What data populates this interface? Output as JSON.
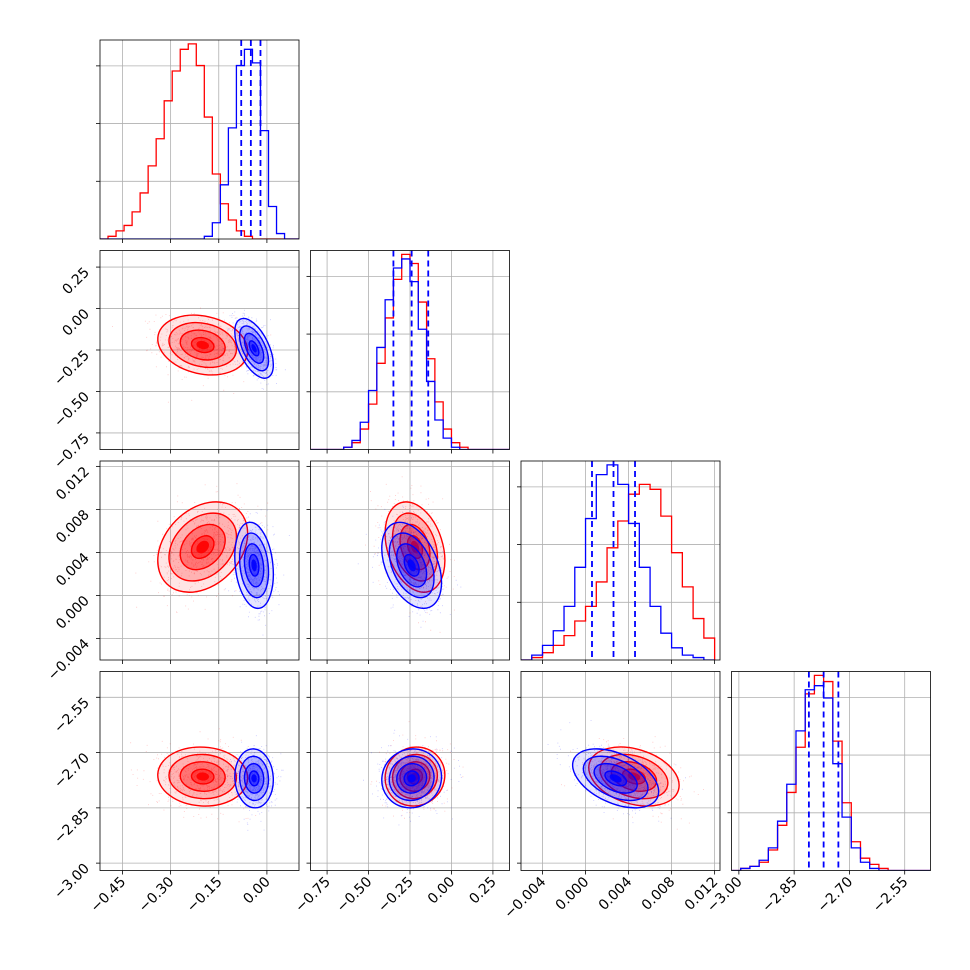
{
  "chart_data": {
    "type": "corner",
    "grid": true,
    "parameters": [
      {
        "range": [
          -0.52,
          0.1
        ],
        "ticks": [
          -0.45,
          -0.3,
          -0.15,
          0.0
        ],
        "tick_labels": [
          "−0.45",
          "−0.30",
          "−0.15",
          "0.00"
        ]
      },
      {
        "range": [
          -0.85,
          0.35
        ],
        "ticks": [
          -0.75,
          -0.5,
          -0.25,
          0.0,
          0.25
        ],
        "tick_labels": [
          "−0.75",
          "−0.50",
          "−0.25",
          "0.00",
          "0.25"
        ]
      },
      {
        "range": [
          -0.006,
          0.0125
        ],
        "ticks": [
          -0.004,
          0.0,
          0.004,
          0.008,
          0.012
        ],
        "tick_labels": [
          "−0.004",
          "0.000",
          "0.004",
          "0.008",
          "0.012"
        ]
      },
      {
        "range": [
          -3.02,
          -2.48
        ],
        "ticks": [
          -3.0,
          -2.85,
          -2.7,
          -2.55
        ],
        "tick_labels": [
          "−3.00",
          "−2.85",
          "−2.70",
          "−2.55"
        ]
      }
    ],
    "series": [
      {
        "color": "#ff0000",
        "hist_edges": [
          [
            -0.52,
            -0.495,
            -0.47,
            -0.445,
            -0.42,
            -0.395,
            -0.37,
            -0.345,
            -0.32,
            -0.295,
            -0.27,
            -0.245,
            -0.22,
            -0.195,
            -0.17,
            -0.145,
            -0.12,
            -0.095,
            -0.07,
            -0.045,
            -0.02,
            0.005,
            0.03,
            0.055,
            0.08,
            0.1
          ],
          [
            -0.85,
            -0.8,
            -0.75,
            -0.7,
            -0.65,
            -0.6,
            -0.55,
            -0.5,
            -0.45,
            -0.4,
            -0.35,
            -0.3,
            -0.25,
            -0.2,
            -0.15,
            -0.1,
            -0.05,
            0.0,
            0.05,
            0.1,
            0.15,
            0.2,
            0.25,
            0.3,
            0.35
          ],
          [
            -0.006,
            -0.005,
            -0.004,
            -0.003,
            -0.002,
            -0.001,
            0.0,
            0.001,
            0.002,
            0.003,
            0.004,
            0.005,
            0.006,
            0.007,
            0.008,
            0.009,
            0.01,
            0.011,
            0.012
          ],
          [
            -3.02,
            -2.995,
            -2.97,
            -2.945,
            -2.92,
            -2.895,
            -2.87,
            -2.845,
            -2.82,
            -2.795,
            -2.77,
            -2.745,
            -2.72,
            -2.695,
            -2.67,
            -2.645,
            -2.62,
            -2.595,
            -2.57,
            -2.545,
            -2.52,
            -2.48
          ]
        ],
        "hist_counts": [
          [
            0,
            1,
            3,
            5,
            10,
            17,
            27,
            37,
            51,
            62,
            70,
            72,
            64,
            45,
            24,
            13,
            7,
            3,
            1,
            0,
            0,
            0,
            0,
            0,
            0
          ],
          [
            0,
            0,
            0,
            0,
            1,
            3,
            9,
            20,
            38,
            58,
            75,
            86,
            82,
            65,
            40,
            21,
            9,
            3,
            1,
            0,
            0,
            0,
            0,
            0
          ],
          [
            0,
            1,
            3,
            6,
            10,
            16,
            22,
            32,
            46,
            57,
            68,
            72,
            70,
            59,
            44,
            30,
            17,
            9
          ],
          [
            0,
            1,
            2,
            4,
            10,
            22,
            38,
            60,
            86,
            95,
            92,
            63,
            33,
            14,
            6,
            3,
            1,
            0,
            0,
            0,
            0
          ]
        ],
        "means": [
          -0.2,
          -0.22,
          0.0045,
          -2.765
        ],
        "stds": [
          0.07,
          0.09,
          0.0021,
          0.04
        ],
        "correlations": {
          "0-1": -0.2,
          "0-2": 0.3,
          "0-3": -0.05,
          "1-2": -0.3,
          "1-3": 0.05,
          "2-3": -0.3
        }
      },
      {
        "color": "#0000ff",
        "hist_edges": [
          [
            -0.52,
            -0.495,
            -0.47,
            -0.445,
            -0.42,
            -0.395,
            -0.37,
            -0.345,
            -0.32,
            -0.295,
            -0.27,
            -0.245,
            -0.22,
            -0.195,
            -0.17,
            -0.145,
            -0.12,
            -0.095,
            -0.07,
            -0.045,
            -0.02,
            0.005,
            0.03,
            0.055,
            0.08,
            0.1
          ],
          [
            -0.85,
            -0.8,
            -0.75,
            -0.7,
            -0.65,
            -0.6,
            -0.55,
            -0.5,
            -0.45,
            -0.4,
            -0.35,
            -0.3,
            -0.25,
            -0.2,
            -0.15,
            -0.1,
            -0.05,
            0.0,
            0.05,
            0.1,
            0.15,
            0.2,
            0.25,
            0.3,
            0.35
          ],
          [
            -0.006,
            -0.005,
            -0.004,
            -0.003,
            -0.002,
            -0.001,
            0.0,
            0.001,
            0.002,
            0.003,
            0.004,
            0.005,
            0.006,
            0.007,
            0.008,
            0.009,
            0.01,
            0.011,
            0.012
          ],
          [
            -3.02,
            -2.995,
            -2.97,
            -2.945,
            -2.92,
            -2.895,
            -2.87,
            -2.845,
            -2.82,
            -2.795,
            -2.77,
            -2.745,
            -2.72,
            -2.695,
            -2.67,
            -2.645,
            -2.62,
            -2.595,
            -2.57,
            -2.545,
            -2.52,
            -2.48
          ]
        ],
        "hist_counts": [
          [
            0,
            0,
            0,
            0,
            0,
            0,
            0,
            0,
            0,
            0,
            0,
            0,
            0,
            1,
            6,
            20,
            41,
            64,
            70,
            65,
            40,
            12,
            2,
            0,
            0
          ],
          [
            0,
            0,
            0,
            0,
            1,
            4,
            12,
            26,
            45,
            66,
            80,
            84,
            74,
            53,
            30,
            13,
            5,
            1,
            0,
            0,
            0,
            0,
            0,
            0
          ],
          [
            0,
            2,
            6,
            12,
            22,
            38,
            58,
            76,
            80,
            72,
            56,
            38,
            22,
            11,
            5,
            2,
            1,
            0
          ],
          [
            0,
            1,
            2,
            5,
            11,
            24,
            42,
            68,
            88,
            90,
            84,
            52,
            26,
            11,
            4,
            1,
            0,
            0,
            0,
            0,
            0
          ]
        ],
        "means": [
          -0.04,
          -0.24,
          0.0028,
          -2.77
        ],
        "stds": [
          0.03,
          0.09,
          0.002,
          0.04
        ],
        "correlations": {
          "0-1": -0.55,
          "0-2": -0.2,
          "0-3": -0.05,
          "1-2": -0.4,
          "1-3": 0.05,
          "2-3": -0.45
        }
      }
    ],
    "quantile_lines": {
      "color": "#0000ff",
      "style": "dashed",
      "values": [
        [
          -0.08,
          -0.05,
          -0.02
        ],
        [
          -0.35,
          -0.24,
          -0.14
        ],
        [
          0.0006,
          0.0026,
          0.0046
        ],
        [
          -2.81,
          -2.77,
          -2.73
        ]
      ]
    }
  }
}
